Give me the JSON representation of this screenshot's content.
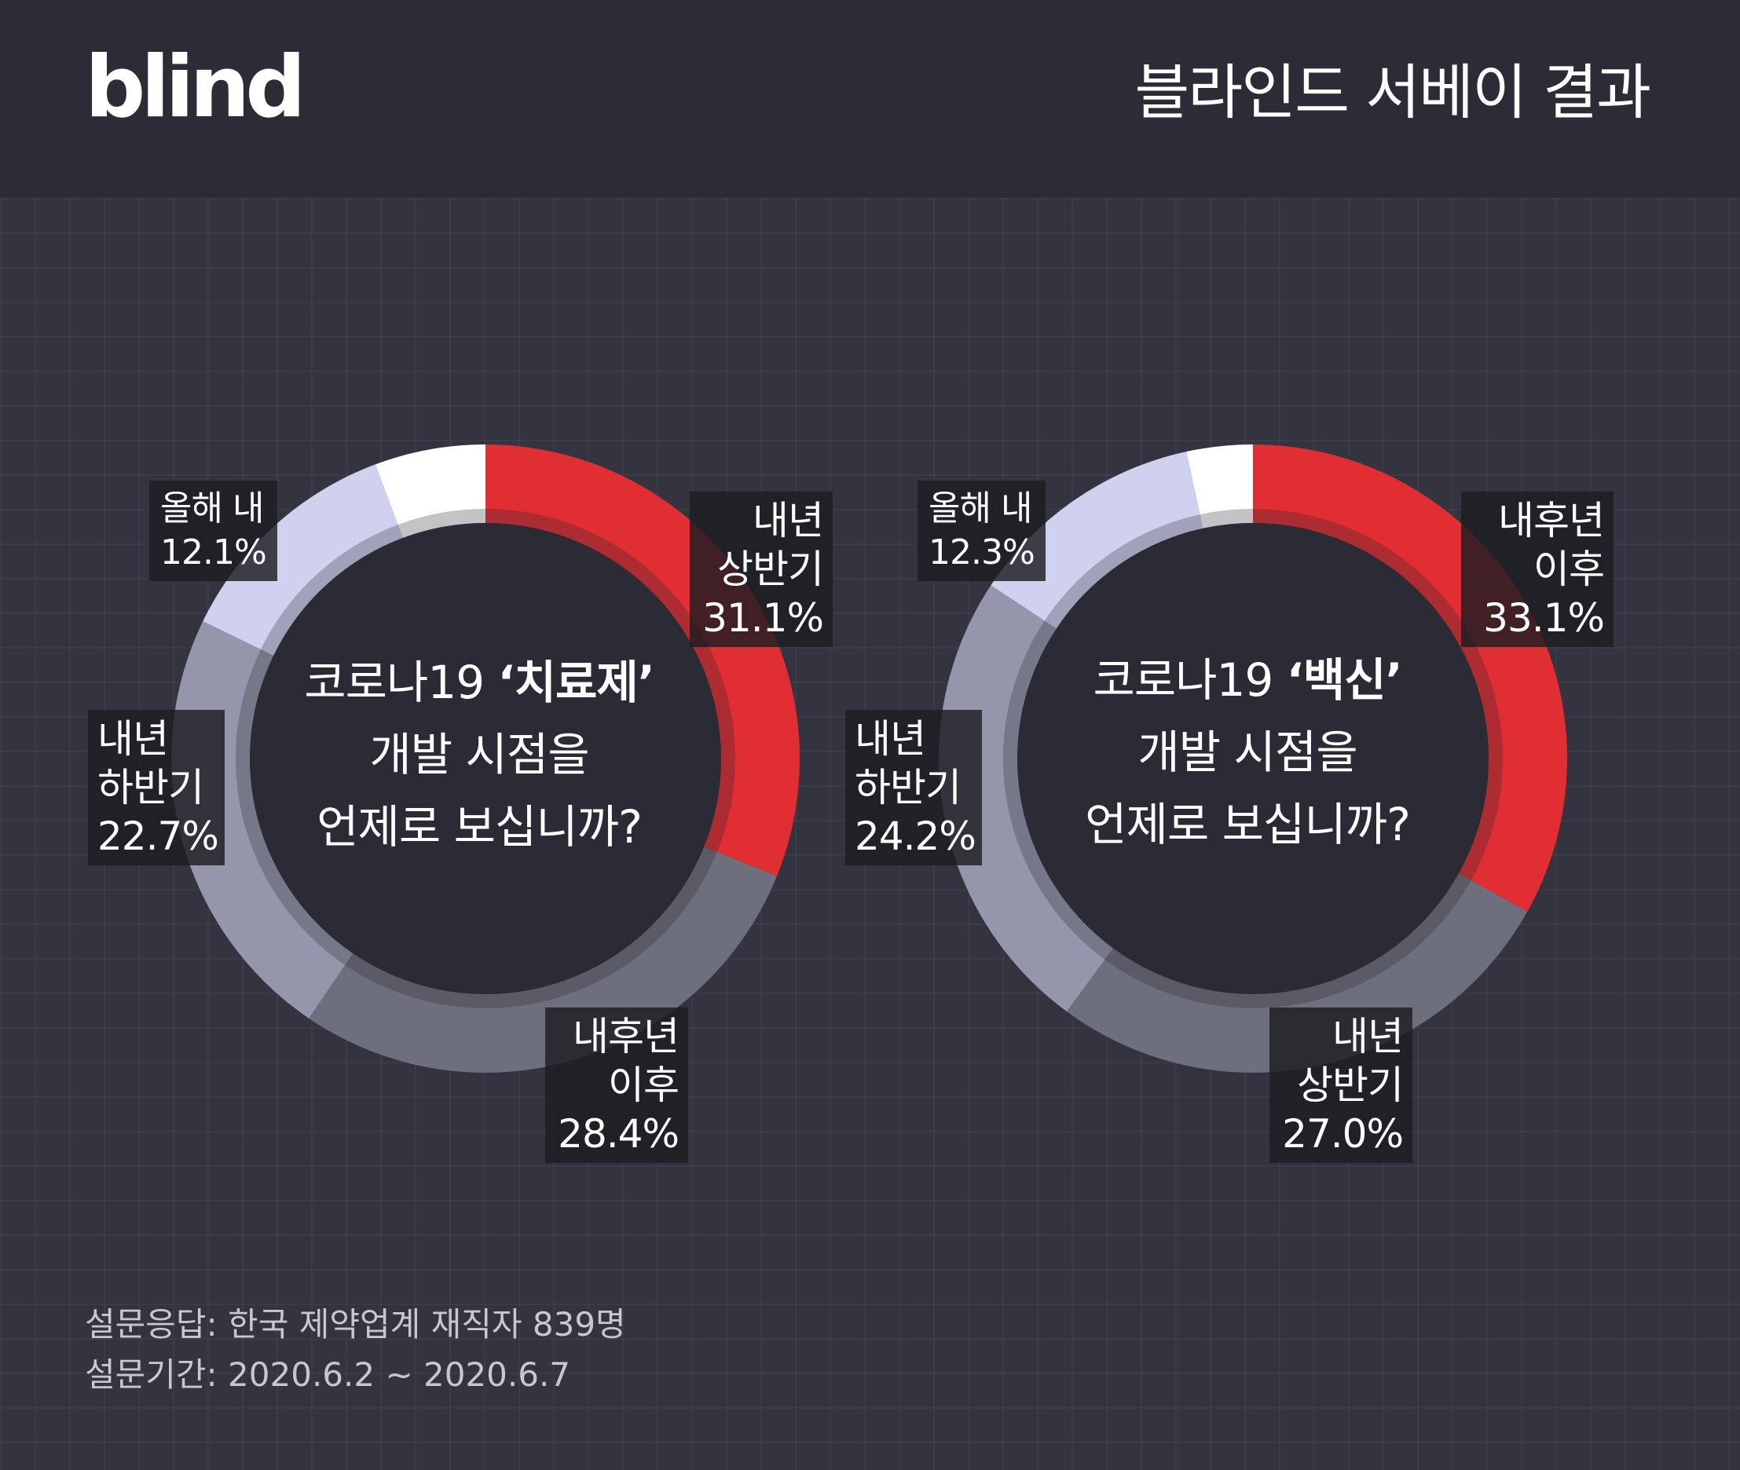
{
  "header": {
    "logo": "blind",
    "title": "블라인드 서베이 결과"
  },
  "charts": [
    {
      "center": {
        "prefix": "코로나19 ",
        "keyword": "‘치료제’",
        "line2": "개발 시점을",
        "line3": "언제로 보십니까?"
      },
      "labels": [
        {
          "line1": "내년",
          "line2": "상반기",
          "value": "31.1%"
        },
        {
          "line1": "내후년",
          "line2": "이후",
          "value": "28.4%"
        },
        {
          "line1": "내년",
          "line2": "하반기",
          "value": "22.7%"
        },
        {
          "text": "올해 내 12.1%"
        }
      ]
    },
    {
      "center": {
        "prefix": "코로나19 ",
        "keyword": "‘백신’",
        "line2": "개발 시점을",
        "line3": "언제로 보십니까?"
      },
      "labels": [
        {
          "line1": "내후년",
          "line2": "이후",
          "value": "33.1%"
        },
        {
          "line1": "내년",
          "line2": "상반기",
          "value": "27.0%"
        },
        {
          "line1": "내년",
          "line2": "하반기",
          "value": "24.2%"
        },
        {
          "text": "올해 내 12.3%"
        }
      ]
    }
  ],
  "chart_data": [
    {
      "type": "pie",
      "title": "코로나19 ‘치료제’ 개발 시점을 언제로 보십니까?",
      "categories": [
        "내년 상반기",
        "내후년 이후",
        "내년 하반기",
        "올해 내",
        ""
      ],
      "values": [
        31.1,
        28.4,
        22.7,
        12.1,
        5.7
      ],
      "colors": [
        "#e02e33",
        "#6e6f7d",
        "#9596ac",
        "#d0d0ef",
        "#ffffff"
      ]
    },
    {
      "type": "pie",
      "title": "코로나19 ‘백신’ 개발 시점을 언제로 보십니까?",
      "categories": [
        "내후년 이후",
        "내년 상반기",
        "내년 하반기",
        "올해 내",
        ""
      ],
      "values": [
        33.1,
        27.0,
        24.2,
        12.3,
        3.4
      ],
      "colors": [
        "#e02e33",
        "#6e6f7d",
        "#9596ac",
        "#d0d0ef",
        "#ffffff"
      ]
    }
  ],
  "footer": {
    "line1": "설문응답: 한국 제약업계 재직자  839명",
    "line2": "설문기간: 2020.6.2 ~ 2020.6.7"
  }
}
